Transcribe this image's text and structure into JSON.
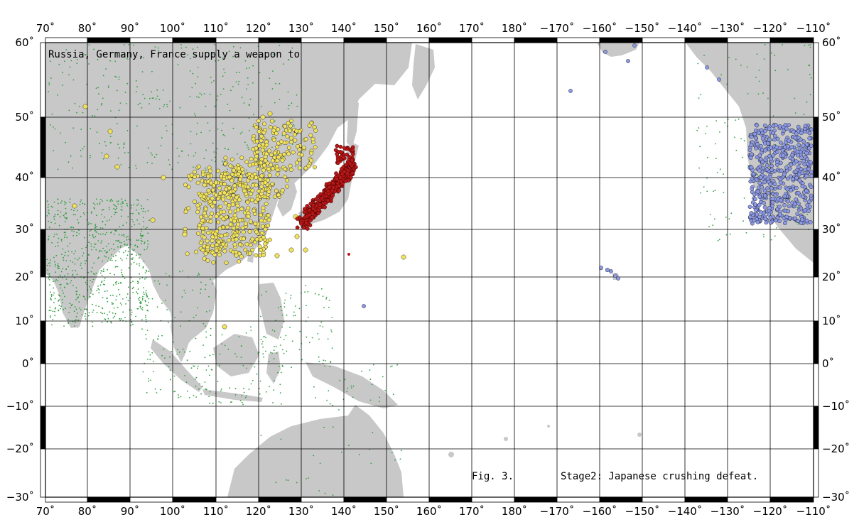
{
  "map": {
    "lon_ticks": [
      "70˚",
      "80˚",
      "90˚",
      "100˚",
      "110˚",
      "120˚",
      "130˚",
      "140˚",
      "150˚",
      "160˚",
      "170˚",
      "180˚",
      "−170˚",
      "−160˚",
      "−150˚",
      "−140˚",
      "−130˚",
      "−120˚",
      "−110˚"
    ],
    "lat_ticks": [
      "60˚",
      "50˚",
      "40˚",
      "30˚",
      "20˚",
      "10˚",
      "0˚",
      "−10˚",
      "−20˚",
      "−30˚"
    ],
    "title": "Russia, Germany, France supply a weapon to",
    "figure_label": "Fig. 3.",
    "stage_label": "Stage2: Japanese crushing defeat.",
    "colors": {
      "land": "#c8c8c8",
      "grid": "#000000",
      "green_dots": "#2e9e3e",
      "yellow_points": "#f2e35a",
      "red_points": "#b81818",
      "blue_points": "#8c9ae6"
    },
    "regions": {
      "yellow": "China / Korea",
      "red": "Japan",
      "blue": "Western United States / Hawaii",
      "green": "Background settlements"
    }
  }
}
